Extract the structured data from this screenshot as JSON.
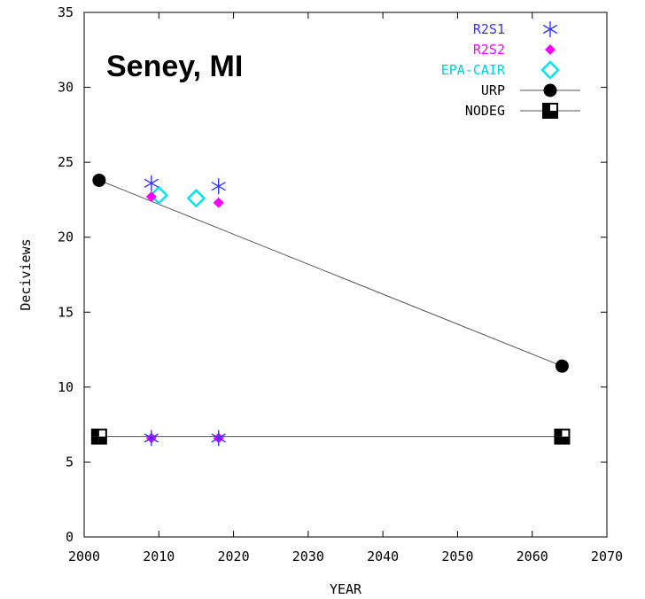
{
  "chart_data": {
    "type": "scatter",
    "annotation": "Seney, MI",
    "xlabel": "YEAR",
    "ylabel": "Deciviews",
    "xlim": [
      2000,
      2070
    ],
    "ylim": [
      0,
      35
    ],
    "xticks": [
      2000,
      2010,
      2020,
      2030,
      2040,
      2050,
      2060,
      2070
    ],
    "yticks": [
      0,
      5,
      10,
      15,
      20,
      25,
      30,
      35
    ],
    "legend_position": "top-right",
    "grid": false,
    "series": [
      {
        "name": "R2S1",
        "marker": "asterisk",
        "color": "#3333ff",
        "line": false,
        "points": [
          [
            2009,
            23.6
          ],
          [
            2018,
            23.4
          ],
          [
            2009,
            6.6
          ],
          [
            2018,
            6.6
          ]
        ]
      },
      {
        "name": "R2S2",
        "marker": "filled-diamond",
        "color": "#ff00ff",
        "line": false,
        "points": [
          [
            2009,
            22.7
          ],
          [
            2018,
            22.3
          ],
          [
            2009,
            6.6
          ],
          [
            2018,
            6.6
          ]
        ]
      },
      {
        "name": "EPA-CAIR",
        "marker": "open-diamond",
        "color": "#00e5ee",
        "line": false,
        "points": [
          [
            2010,
            22.8
          ],
          [
            2015,
            22.6
          ]
        ]
      },
      {
        "name": "URP",
        "marker": "filled-circle",
        "color": "#000000",
        "line": true,
        "points": [
          [
            2002,
            23.8
          ],
          [
            2064,
            11.4
          ]
        ]
      },
      {
        "name": "NODEG",
        "marker": "half-filled-square",
        "color": "#000000",
        "line": true,
        "points": [
          [
            2002,
            6.7
          ],
          [
            2064,
            6.7
          ]
        ]
      }
    ]
  }
}
